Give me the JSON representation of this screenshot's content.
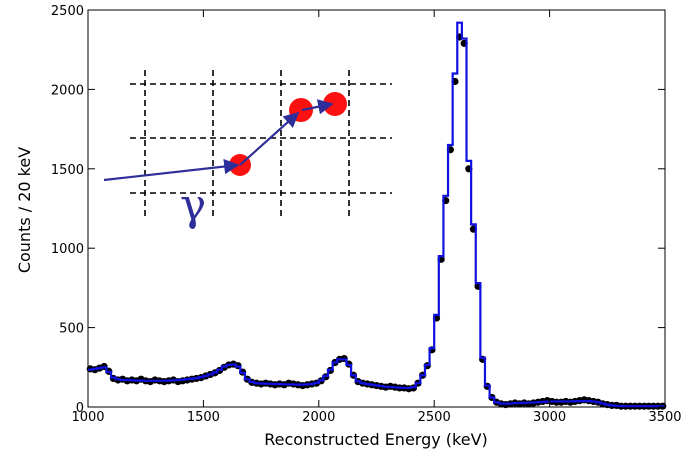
{
  "chart_data": {
    "type": "line",
    "xlabel": "Reconstructed Energy (keV)",
    "ylabel": "Counts / 20 keV",
    "annotation": "γ",
    "xlim": [
      1000,
      3500
    ],
    "xticks": [
      1000,
      1500,
      2000,
      2500,
      3000,
      3500
    ],
    "ylim": [
      0,
      2500
    ],
    "yticks": [
      0,
      500,
      1000,
      1500,
      2000,
      2500
    ],
    "x": [
      1010,
      1030,
      1050,
      1070,
      1090,
      1110,
      1130,
      1150,
      1170,
      1190,
      1210,
      1230,
      1250,
      1270,
      1290,
      1310,
      1330,
      1350,
      1370,
      1390,
      1410,
      1430,
      1450,
      1470,
      1490,
      1510,
      1530,
      1550,
      1570,
      1590,
      1610,
      1630,
      1650,
      1670,
      1690,
      1710,
      1730,
      1750,
      1770,
      1790,
      1810,
      1830,
      1850,
      1870,
      1890,
      1910,
      1930,
      1950,
      1970,
      1990,
      2010,
      2030,
      2050,
      2070,
      2090,
      2110,
      2130,
      2150,
      2170,
      2190,
      2210,
      2230,
      2250,
      2270,
      2290,
      2310,
      2330,
      2350,
      2370,
      2390,
      2410,
      2430,
      2450,
      2470,
      2490,
      2510,
      2530,
      2550,
      2570,
      2590,
      2610,
      2630,
      2650,
      2670,
      2690,
      2710,
      2730,
      2750,
      2770,
      2790,
      2810,
      2830,
      2850,
      2870,
      2890,
      2910,
      2930,
      2950,
      2970,
      2990,
      3010,
      3030,
      3050,
      3070,
      3090,
      3110,
      3130,
      3150,
      3170,
      3190,
      3210,
      3230,
      3250,
      3270,
      3290,
      3310,
      3330,
      3350,
      3370,
      3390,
      3410,
      3430,
      3450,
      3470,
      3490
    ],
    "series": [
      {
        "type": "scatter",
        "color": "#000000",
        "values": [
          240,
          235,
          245,
          255,
          225,
          180,
          170,
          175,
          165,
          170,
          165,
          175,
          165,
          160,
          170,
          165,
          160,
          165,
          170,
          160,
          165,
          170,
          175,
          180,
          185,
          195,
          205,
          215,
          230,
          250,
          265,
          270,
          260,
          220,
          175,
          155,
          150,
          145,
          150,
          145,
          140,
          145,
          140,
          150,
          145,
          140,
          135,
          140,
          145,
          150,
          165,
          190,
          230,
          280,
          300,
          305,
          270,
          200,
          160,
          150,
          145,
          140,
          135,
          130,
          125,
          130,
          125,
          120,
          120,
          115,
          120,
          150,
          200,
          260,
          360,
          560,
          930,
          1300,
          1620,
          2050,
          2330,
          2290,
          1500,
          1120,
          760,
          300,
          130,
          60,
          30,
          20,
          15,
          20,
          25,
          20,
          25,
          20,
          25,
          30,
          35,
          40,
          35,
          30,
          30,
          35,
          30,
          35,
          40,
          45,
          40,
          35,
          30,
          20,
          15,
          10,
          10,
          5,
          5,
          5,
          5,
          5,
          5,
          5,
          5,
          5,
          5
        ]
      },
      {
        "type": "step",
        "color": "#1010e0",
        "values": [
          235,
          240,
          245,
          250,
          220,
          185,
          175,
          170,
          170,
          168,
          167,
          166,
          165,
          165,
          165,
          165,
          165,
          166,
          168,
          170,
          172,
          175,
          178,
          182,
          188,
          195,
          205,
          218,
          235,
          255,
          265,
          268,
          255,
          215,
          175,
          158,
          150,
          148,
          147,
          146,
          145,
          144,
          143,
          142,
          142,
          141,
          141,
          142,
          145,
          152,
          168,
          195,
          235,
          280,
          300,
          300,
          265,
          200,
          162,
          150,
          144,
          140,
          136,
          132,
          128,
          126,
          124,
          122,
          120,
          120,
          125,
          150,
          200,
          265,
          370,
          580,
          950,
          1330,
          1650,
          2100,
          2420,
          2320,
          1550,
          1150,
          780,
          310,
          135,
          60,
          30,
          22,
          20,
          22,
          24,
          25,
          26,
          27,
          28,
          30,
          32,
          34,
          35,
          35,
          35,
          35,
          35,
          36,
          37,
          38,
          37,
          34,
          30,
          22,
          15,
          10,
          8,
          6,
          5,
          5,
          5,
          5,
          5,
          5,
          5,
          5,
          5
        ]
      }
    ]
  }
}
